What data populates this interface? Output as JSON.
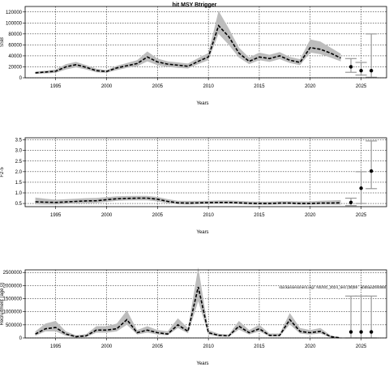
{
  "chart_data": [
    {
      "type": "line",
      "title": "hit MSY Btrigger",
      "xlabel": "Years",
      "ylabel": "SSB",
      "xlim": [
        1992,
        2027.5
      ],
      "ylim": [
        0,
        130000
      ],
      "xticks": [
        1995,
        2000,
        2005,
        2010,
        2015,
        2020,
        2025
      ],
      "yticks": [
        0,
        20000,
        40000,
        60000,
        80000,
        100000,
        120000
      ],
      "grid": true,
      "colors": {
        "band": "#bdbdbd",
        "line": "#000000"
      },
      "series": [
        {
          "x": [
            1993,
            1994,
            1995,
            1996,
            1997,
            1998,
            1999,
            2000,
            2001,
            2002,
            2003,
            2004,
            2005,
            2006,
            2007,
            2008,
            2009,
            2010,
            2011,
            2012,
            2013,
            2014,
            2015,
            2016,
            2017,
            2018,
            2019,
            2020,
            2021,
            2022,
            2023
          ],
          "median": [
            9000,
            10500,
            12000,
            20000,
            24000,
            19000,
            13000,
            11500,
            18000,
            22000,
            26000,
            38000,
            29000,
            25000,
            23000,
            21000,
            30000,
            38000,
            95000,
            75000,
            45000,
            30000,
            38000,
            35000,
            40000,
            32000,
            28000,
            55000,
            52000,
            45000,
            36000
          ],
          "lower": [
            7000,
            8000,
            9000,
            15000,
            19000,
            15000,
            10000,
            9000,
            14000,
            18000,
            21000,
            30000,
            23000,
            20000,
            18000,
            17000,
            25000,
            32000,
            80000,
            60000,
            37000,
            25000,
            32000,
            29000,
            34000,
            27000,
            23000,
            46000,
            43000,
            37000,
            30000
          ],
          "upper": [
            11500,
            13000,
            15000,
            25000,
            29000,
            23000,
            16500,
            14000,
            22000,
            27000,
            32000,
            48000,
            35000,
            30000,
            28000,
            26000,
            36000,
            45000,
            122000,
            90000,
            55000,
            37000,
            46000,
            42000,
            47000,
            38000,
            34000,
            70000,
            66000,
            55000,
            44000
          ]
        }
      ],
      "projection": [
        {
          "x": 2024,
          "median": 20000,
          "lower": 10000,
          "upper": 35000
        },
        {
          "x": 2025,
          "median": 13000,
          "lower": 5000,
          "upper": 28000
        },
        {
          "x": 2026,
          "median": 13000,
          "lower": 1000,
          "upper": 80000
        }
      ]
    },
    {
      "type": "line",
      "title": "",
      "xlabel": "Years",
      "ylabel": "F2-5",
      "xlim": [
        1992,
        2027.5
      ],
      "ylim": [
        0.35,
        3.6
      ],
      "xticks": [
        1995,
        2000,
        2005,
        2010,
        2015,
        2020,
        2025
      ],
      "yticks": [
        0.5,
        1.0,
        1.5,
        2.0,
        2.5,
        3.0,
        3.5
      ],
      "ytick_labels": [
        "0.5",
        "1.0",
        "1.5",
        "2.0",
        "2.5",
        "3.0",
        "3.5"
      ],
      "grid": true,
      "colors": {
        "band": "#bdbdbd",
        "line": "#000000"
      },
      "series": [
        {
          "x": [
            1993,
            1994,
            1995,
            1996,
            1997,
            1998,
            1999,
            2000,
            2001,
            2002,
            2003,
            2004,
            2005,
            2006,
            2007,
            2008,
            2009,
            2010,
            2011,
            2012,
            2013,
            2014,
            2015,
            2016,
            2017,
            2018,
            2019,
            2020,
            2021,
            2022,
            2023
          ],
          "median": [
            0.58,
            0.56,
            0.55,
            0.57,
            0.6,
            0.62,
            0.63,
            0.68,
            0.72,
            0.74,
            0.75,
            0.75,
            0.7,
            0.6,
            0.53,
            0.52,
            0.53,
            0.54,
            0.55,
            0.55,
            0.53,
            0.51,
            0.5,
            0.5,
            0.52,
            0.52,
            0.5,
            0.5,
            0.52,
            0.52,
            0.53
          ],
          "lower": [
            0.46,
            0.45,
            0.45,
            0.47,
            0.5,
            0.52,
            0.53,
            0.58,
            0.62,
            0.64,
            0.65,
            0.65,
            0.6,
            0.52,
            0.46,
            0.45,
            0.46,
            0.47,
            0.48,
            0.48,
            0.47,
            0.45,
            0.44,
            0.44,
            0.45,
            0.46,
            0.44,
            0.44,
            0.45,
            0.45,
            0.44
          ],
          "upper": [
            0.78,
            0.72,
            0.68,
            0.7,
            0.73,
            0.75,
            0.76,
            0.8,
            0.84,
            0.85,
            0.86,
            0.86,
            0.81,
            0.7,
            0.63,
            0.62,
            0.62,
            0.63,
            0.64,
            0.64,
            0.62,
            0.6,
            0.59,
            0.59,
            0.61,
            0.61,
            0.6,
            0.6,
            0.63,
            0.64,
            0.66
          ]
        }
      ],
      "projection": [
        {
          "x": 2024,
          "median": 0.55,
          "lower": 0.4,
          "upper": 0.75
        },
        {
          "x": 2025,
          "median": 1.22,
          "lower": 0.5,
          "upper": 2.0
        },
        {
          "x": 2026,
          "median": 2.03,
          "lower": 1.2,
          "upper": 3.45
        }
      ]
    },
    {
      "type": "line",
      "title": "",
      "xlabel": "Years",
      "ylabel": "Recruitment (age 0)",
      "xlim": [
        1992,
        2027.5
      ],
      "ylim": [
        0,
        2600000
      ],
      "xticks": [
        1995,
        2000,
        2005,
        2010,
        2015,
        2020,
        2025
      ],
      "yticks": [
        0,
        500000,
        1000000,
        1500000,
        2000000,
        2500000
      ],
      "ytick_labels": [
        "0",
        "500000",
        "1000000",
        "1500000",
        "2000000",
        "2500000"
      ],
      "grid": true,
      "annotation": "stockassessment.org/: NS/SG_2024_test (38)59 : ab55aa25f4868",
      "colors": {
        "band": "#bdbdbd",
        "line": "#000000"
      },
      "series": [
        {
          "x": [
            1993,
            1994,
            1995,
            1996,
            1997,
            1998,
            1999,
            2000,
            2001,
            2002,
            2003,
            2004,
            2005,
            2006,
            2007,
            2008,
            2009,
            2010,
            2011,
            2012,
            2013,
            2014,
            2015,
            2016,
            2017,
            2018,
            2019,
            2020,
            2021,
            2022,
            2023
          ],
          "median": [
            150000,
            350000,
            400000,
            150000,
            50000,
            80000,
            300000,
            300000,
            350000,
            700000,
            200000,
            300000,
            200000,
            150000,
            500000,
            250000,
            1950000,
            200000,
            100000,
            80000,
            450000,
            200000,
            350000,
            100000,
            100000,
            700000,
            250000,
            200000,
            250000,
            50000,
            0
          ],
          "lower": [
            80000,
            250000,
            250000,
            80000,
            20000,
            40000,
            200000,
            200000,
            250000,
            500000,
            130000,
            200000,
            130000,
            100000,
            380000,
            180000,
            1400000,
            130000,
            60000,
            50000,
            320000,
            130000,
            250000,
            60000,
            60000,
            520000,
            170000,
            130000,
            170000,
            20000,
            0
          ],
          "upper": [
            250000,
            550000,
            650000,
            250000,
            100000,
            150000,
            450000,
            450000,
            550000,
            1050000,
            300000,
            450000,
            300000,
            250000,
            750000,
            380000,
            2700000,
            300000,
            160000,
            130000,
            650000,
            300000,
            500000,
            170000,
            170000,
            950000,
            380000,
            300000,
            380000,
            100000,
            10000
          ]
        }
      ],
      "projection": [
        {
          "x": 2024,
          "median": 230000,
          "lower": 0,
          "upper": 1600000
        },
        {
          "x": 2025,
          "median": 230000,
          "lower": 0,
          "upper": 1600000
        },
        {
          "x": 2026,
          "median": 230000,
          "lower": 0,
          "upper": 1600000
        }
      ]
    }
  ]
}
